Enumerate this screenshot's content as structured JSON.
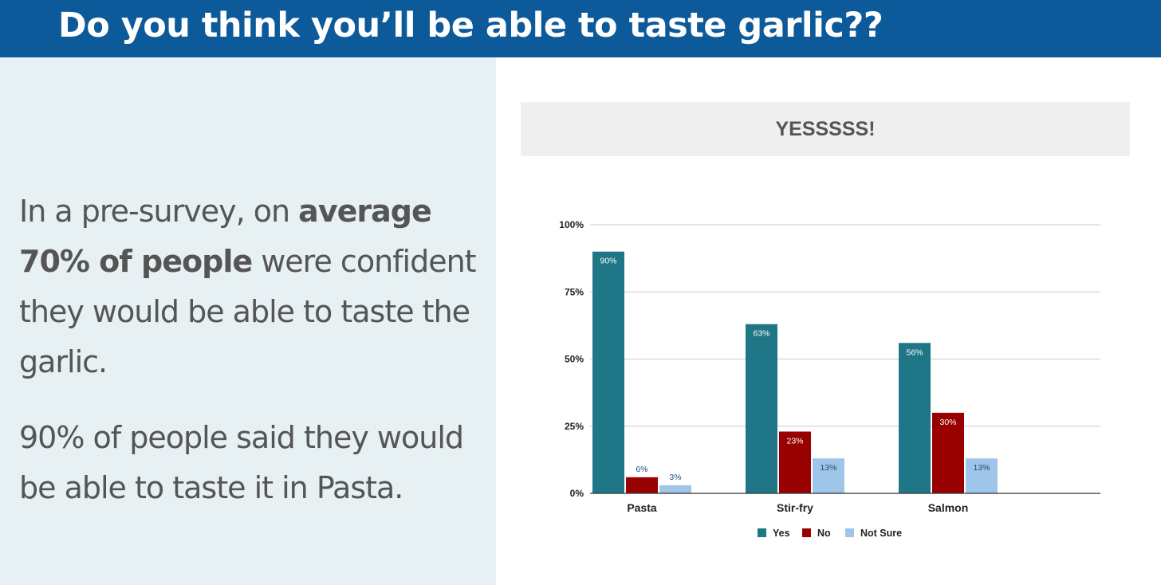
{
  "header": {
    "title": "Do you think you’ll be able to taste garlic??"
  },
  "left_text": {
    "p1_a": "In a pre-survey, on ",
    "p1_b": "average 70% of people",
    "p1_c": " were confident they would be able to taste the garlic.",
    "p2": "90% of people said they would be able to taste it in Pasta."
  },
  "colors": {
    "header": "#0d5a9a",
    "panel": "#e7f0f2",
    "yes": "#1f7687",
    "no": "#990000",
    "not_sure": "#9fc5e8"
  },
  "chart_data": {
    "type": "bar",
    "title": "YESSSSS!",
    "categories": [
      "Pasta",
      "Stir-fry",
      "Salmon"
    ],
    "series": [
      {
        "name": "Yes",
        "color": "#1f7687",
        "values": [
          90,
          63,
          56
        ],
        "labels": [
          "90%",
          "63%",
          "56%"
        ]
      },
      {
        "name": "No",
        "color": "#990000",
        "values": [
          6,
          23,
          30
        ],
        "labels": [
          "6%",
          "23%",
          "30%"
        ]
      },
      {
        "name": "Not Sure",
        "color": "#9fc5e8",
        "values": [
          3,
          13,
          13
        ],
        "labels": [
          "3%",
          "13%",
          "13%"
        ]
      }
    ],
    "yticks": [
      0,
      25,
      50,
      75,
      100
    ],
    "ytick_labels": [
      "0%",
      "25%",
      "50%",
      "75%",
      "100%"
    ],
    "ylim": [
      0,
      100
    ],
    "grid": true,
    "legend": "bottom"
  }
}
